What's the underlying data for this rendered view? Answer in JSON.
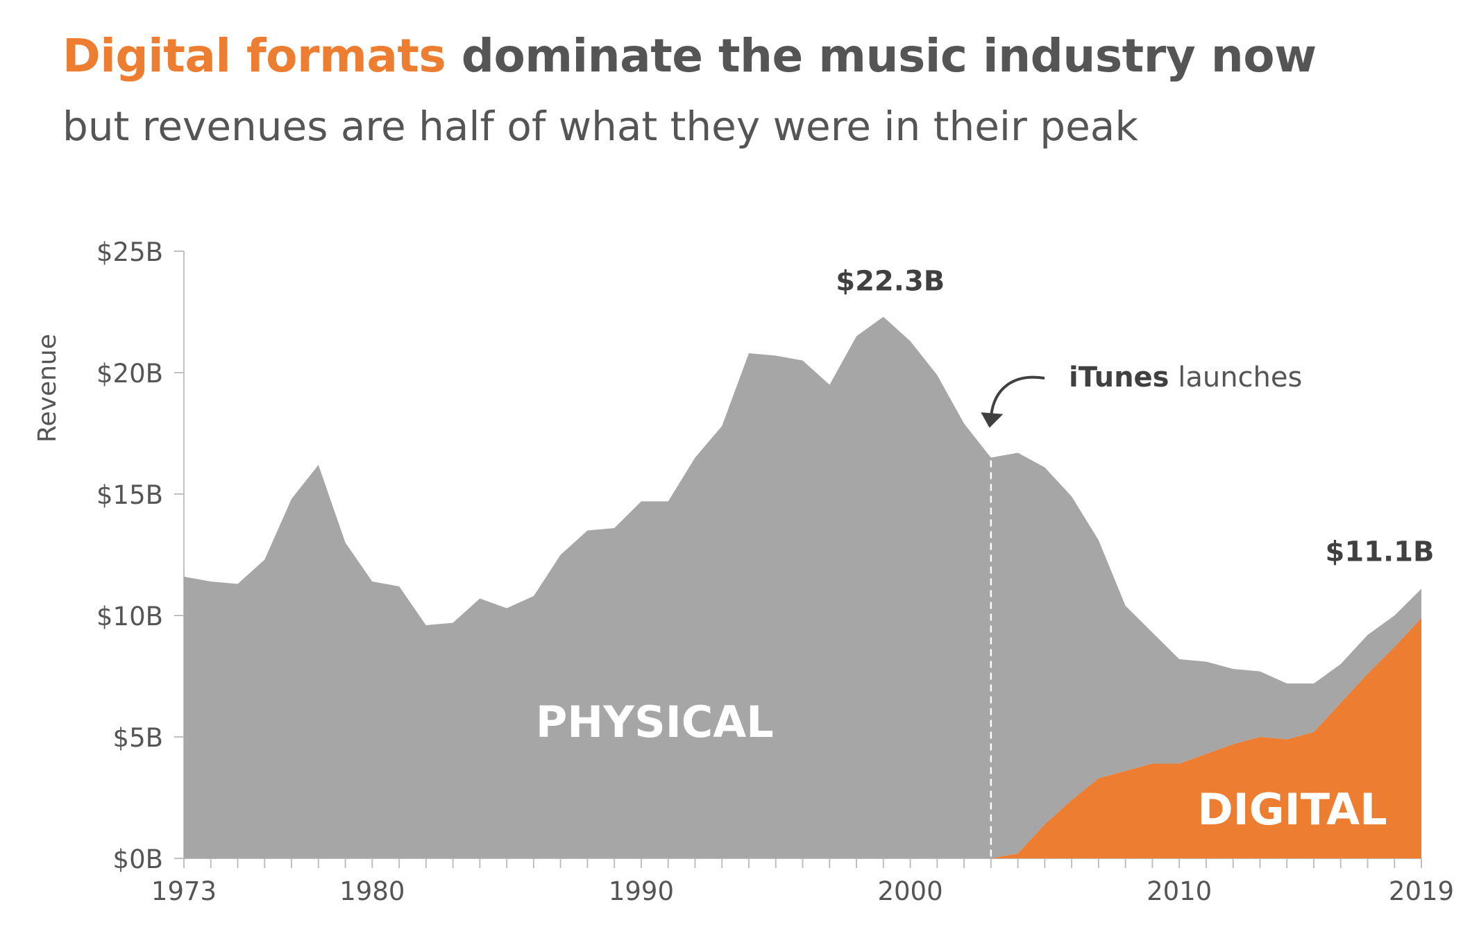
{
  "header": {
    "title_accent": "Digital formats",
    "title_rest": " dominate the music industry now",
    "subtitle": "but revenues are half of what they were in their peak"
  },
  "colors": {
    "physical": "#A6A6A6",
    "digital": "#ED7D31",
    "text": "#555555",
    "axis": "#BFBFBF"
  },
  "chart_data": {
    "type": "area",
    "stacked": true,
    "ylabel": "Revenue",
    "xlabel": "",
    "xlim": [
      1973,
      2019
    ],
    "ylim": [
      0,
      25
    ],
    "x_ticks": [
      1973,
      1980,
      1990,
      2000,
      2010,
      2019
    ],
    "y_ticks": [
      {
        "value": 0,
        "label": "$0B"
      },
      {
        "value": 5,
        "label": "$5B"
      },
      {
        "value": 10,
        "label": "$10B"
      },
      {
        "value": 15,
        "label": "$15B"
      },
      {
        "value": 20,
        "label": "$20B"
      },
      {
        "value": 25,
        "label": "$25B"
      }
    ],
    "x": [
      1973,
      1974,
      1975,
      1976,
      1977,
      1978,
      1979,
      1980,
      1981,
      1982,
      1983,
      1984,
      1985,
      1986,
      1987,
      1988,
      1989,
      1990,
      1991,
      1992,
      1993,
      1994,
      1995,
      1996,
      1997,
      1998,
      1999,
      2000,
      2001,
      2002,
      2003,
      2004,
      2005,
      2006,
      2007,
      2008,
      2009,
      2010,
      2011,
      2012,
      2013,
      2014,
      2015,
      2016,
      2017,
      2018,
      2019
    ],
    "total": [
      11.6,
      11.4,
      11.3,
      12.3,
      14.8,
      16.2,
      13.0,
      11.4,
      11.2,
      9.6,
      9.7,
      10.7,
      10.3,
      10.8,
      12.5,
      13.5,
      13.6,
      14.7,
      14.7,
      16.5,
      17.8,
      20.8,
      20.7,
      20.5,
      19.5,
      21.5,
      22.3,
      21.3,
      19.9,
      17.9,
      16.5,
      16.7,
      16.1,
      14.9,
      13.1,
      10.4,
      9.3,
      8.2,
      8.1,
      7.8,
      7.7,
      7.2,
      7.2,
      8.0,
      9.2,
      10.0,
      11.1
    ],
    "series": [
      {
        "name": "PHYSICAL",
        "values": [
          11.6,
          11.4,
          11.3,
          12.3,
          14.8,
          16.2,
          13.0,
          11.4,
          11.2,
          9.6,
          9.7,
          10.7,
          10.3,
          10.8,
          12.5,
          13.5,
          13.6,
          14.7,
          14.7,
          16.5,
          17.8,
          20.8,
          20.7,
          20.5,
          19.5,
          21.5,
          22.3,
          21.3,
          19.9,
          17.9,
          16.5,
          16.5,
          14.7,
          12.5,
          9.8,
          6.8,
          5.4,
          4.3,
          3.8,
          3.1,
          2.7,
          2.3,
          2.0,
          1.6,
          1.6,
          1.3,
          1.2
        ]
      },
      {
        "name": "DIGITAL",
        "values": [
          0,
          0,
          0,
          0,
          0,
          0,
          0,
          0,
          0,
          0,
          0,
          0,
          0,
          0,
          0,
          0,
          0,
          0,
          0,
          0,
          0,
          0,
          0,
          0,
          0,
          0,
          0,
          0,
          0,
          0,
          0,
          0.2,
          1.4,
          2.4,
          3.3,
          3.6,
          3.9,
          3.9,
          4.3,
          4.7,
          5.0,
          4.9,
          5.2,
          6.4,
          7.6,
          8.7,
          9.9
        ]
      }
    ],
    "annotations": {
      "peak_label": "$22.3B",
      "end_label": "$11.1B",
      "itunes_bold": "iTunes",
      "itunes_rest": " launches",
      "itunes_year": 2003
    }
  }
}
